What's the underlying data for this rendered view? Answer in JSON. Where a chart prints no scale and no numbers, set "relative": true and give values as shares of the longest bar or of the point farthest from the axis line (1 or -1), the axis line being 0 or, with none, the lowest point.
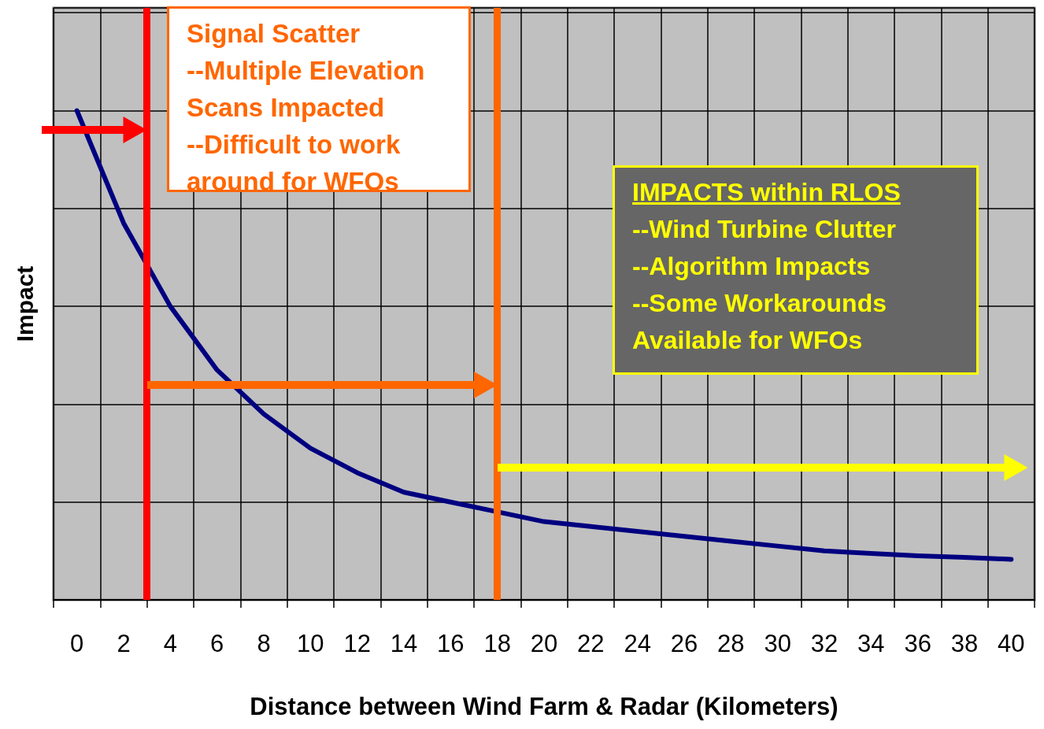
{
  "chart_data": {
    "type": "line",
    "relative": true,
    "xlabel": "Distance between Wind Farm & Radar (Kilometers)",
    "ylabel": "Impact",
    "x": [
      0,
      2,
      4,
      6,
      8,
      10,
      12,
      14,
      16,
      18,
      20,
      22,
      24,
      26,
      28,
      30,
      32,
      34,
      36,
      38,
      40
    ],
    "series": [
      {
        "color": "#000080",
        "values": [
          1,
          0.77,
          0.6,
          0.47,
          0.38,
          0.31,
          0.26,
          0.22,
          0.2,
          0.18,
          0.16,
          0.15,
          0.14,
          0.13,
          0.12,
          0.11,
          0.1,
          0.095,
          0.09,
          0.087,
          0.083
        ]
      }
    ],
    "xlim": [
      -1,
      41
    ],
    "xticks": [
      {
        "value": -1,
        "label": null
      },
      0,
      {
        "value": 1,
        "label": null
      },
      2,
      {
        "value": 3,
        "label": null
      },
      4,
      {
        "value": 5,
        "label": null
      },
      6,
      {
        "value": 7,
        "label": null
      },
      8,
      {
        "value": 9,
        "label": null
      },
      10,
      {
        "value": 11,
        "label": null
      },
      12,
      {
        "value": 13,
        "label": null
      },
      14,
      {
        "value": 15,
        "label": null
      },
      16,
      {
        "value": 17,
        "label": null
      },
      18,
      {
        "value": 19,
        "label": null
      },
      20,
      {
        "value": 21,
        "label": null
      },
      22,
      {
        "value": 23,
        "label": null
      },
      24,
      {
        "value": 25,
        "label": null
      },
      26,
      {
        "value": 27,
        "label": null
      },
      28,
      {
        "value": 29,
        "label": null
      },
      30,
      {
        "value": 31,
        "label": null
      },
      32,
      {
        "value": 33,
        "label": null
      },
      34,
      {
        "value": 35,
        "label": null
      },
      36,
      {
        "value": 37,
        "label": null
      },
      38,
      {
        "value": 39,
        "label": null
      },
      40,
      {
        "value": 41,
        "label": null
      }
    ],
    "ref_lines": [
      {
        "axis": "x",
        "value": 3,
        "color": "#ff0000"
      },
      {
        "axis": "x",
        "value": 18,
        "color": "#ff6600"
      }
    ],
    "annotations": [
      "Signal Scatter\n--Multiple Elevation\nScans Impacted\n--Difficult to work\naround for WFOs",
      "IMPACTS within RLOS\n--Wind Turbine Clutter\n--Algorithm Impacts\n--Some Workarounds\nAvailable for WFOs"
    ],
    "grid": true,
    "marker": "none",
    "line_style": "solid"
  }
}
